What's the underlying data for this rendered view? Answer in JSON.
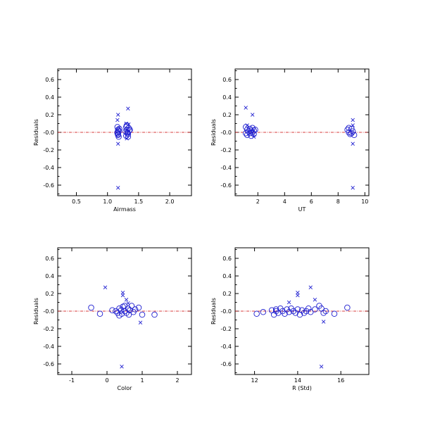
{
  "colors": {
    "points": "#1f1fd0",
    "zero_line": "#cc0000",
    "frame": "#000000"
  },
  "chart_data": [
    {
      "type": "scatter",
      "xlabel": "Airmass",
      "ylabel": "Residuals",
      "xlim": [
        0.2,
        2.35
      ],
      "ylim": [
        -0.72,
        0.72
      ],
      "xticks": [
        "0.5",
        "1.0",
        "1.5",
        "2.0"
      ],
      "yticks": [
        "0.6",
        "0.4",
        "0.2",
        "-0.0",
        "-0.2",
        "-0.4",
        "-0.6"
      ],
      "reference_line_y": 0,
      "series": [
        {
          "marker": "circle",
          "points": [
            [
              1.16,
              0.06
            ],
            [
              1.17,
              0.03
            ],
            [
              1.18,
              0.01
            ],
            [
              1.16,
              -0.01
            ],
            [
              1.17,
              -0.03
            ],
            [
              1.18,
              -0.05
            ],
            [
              1.16,
              0.0
            ],
            [
              1.19,
              0.04
            ],
            [
              1.17,
              -0.02
            ],
            [
              1.18,
              0.02
            ],
            [
              1.3,
              0.06
            ],
            [
              1.31,
              0.03
            ],
            [
              1.32,
              0.0
            ],
            [
              1.33,
              -0.02
            ],
            [
              1.3,
              -0.04
            ],
            [
              1.35,
              0.02
            ],
            [
              1.34,
              0.05
            ],
            [
              1.29,
              0.01
            ],
            [
              1.32,
              -0.01
            ],
            [
              1.36,
              0.03
            ],
            [
              1.31,
              0.08
            ],
            [
              1.33,
              -0.05
            ]
          ]
        },
        {
          "marker": "cross",
          "points": [
            [
              1.17,
              0.2
            ],
            [
              1.16,
              0.14
            ],
            [
              1.17,
              -0.13
            ],
            [
              1.17,
              -0.63
            ],
            [
              1.33,
              0.27
            ],
            [
              1.3,
              0.1
            ],
            [
              1.31,
              -0.07
            ],
            [
              1.34,
              0.09
            ]
          ]
        }
      ]
    },
    {
      "type": "scatter",
      "xlabel": "UT",
      "ylabel": "Residuals",
      "xlim": [
        0.3,
        10.3
      ],
      "ylim": [
        -0.72,
        0.72
      ],
      "xticks": [
        "2",
        "4",
        "6",
        "8",
        "10"
      ],
      "yticks": [
        "0.6",
        "0.4",
        "0.2",
        "-0.0",
        "-0.2",
        "-0.4",
        "-0.6"
      ],
      "reference_line_y": 0,
      "series": [
        {
          "marker": "circle",
          "points": [
            [
              1.1,
              0.06
            ],
            [
              1.2,
              0.03
            ],
            [
              1.3,
              0.01
            ],
            [
              1.1,
              -0.01
            ],
            [
              1.2,
              -0.03
            ],
            [
              1.4,
              0.04
            ],
            [
              1.5,
              0.02
            ],
            [
              1.6,
              0.0
            ],
            [
              1.7,
              -0.02
            ],
            [
              1.5,
              -0.04
            ],
            [
              1.6,
              0.05
            ],
            [
              1.7,
              0.02
            ],
            [
              1.4,
              -0.01
            ],
            [
              1.8,
              0.03
            ],
            [
              8.7,
              0.03
            ],
            [
              8.8,
              0.0
            ],
            [
              8.9,
              -0.02
            ],
            [
              9.0,
              0.04
            ],
            [
              9.1,
              0.01
            ],
            [
              9.2,
              -0.03
            ],
            [
              8.8,
              0.05
            ],
            [
              9.0,
              -0.01
            ]
          ]
        },
        {
          "marker": "cross",
          "points": [
            [
              1.1,
              0.28
            ],
            [
              1.6,
              0.2
            ],
            [
              1.2,
              0.08
            ],
            [
              1.7,
              -0.05
            ],
            [
              9.1,
              0.14
            ],
            [
              9.1,
              0.08
            ],
            [
              9.1,
              -0.13
            ],
            [
              9.1,
              -0.63
            ]
          ]
        }
      ]
    },
    {
      "type": "scatter",
      "xlabel": "Color",
      "ylabel": "Residuals",
      "xlim": [
        -1.4,
        2.4
      ],
      "ylim": [
        -0.72,
        0.72
      ],
      "xticks": [
        "-1",
        "0",
        "1",
        "2"
      ],
      "yticks": [
        "0.6",
        "0.4",
        "0.2",
        "-0.0",
        "-0.2",
        "-0.4",
        "-0.6"
      ],
      "reference_line_y": 0,
      "series": [
        {
          "marker": "circle",
          "points": [
            [
              -0.45,
              0.04
            ],
            [
              -0.2,
              -0.03
            ],
            [
              0.15,
              0.01
            ],
            [
              0.25,
              0.0
            ],
            [
              0.3,
              -0.02
            ],
            [
              0.35,
              0.03
            ],
            [
              0.4,
              0.01
            ],
            [
              0.42,
              -0.03
            ],
            [
              0.45,
              0.05
            ],
            [
              0.5,
              0.0
            ],
            [
              0.55,
              -0.02
            ],
            [
              0.6,
              0.03
            ],
            [
              0.62,
              -0.04
            ],
            [
              0.65,
              0.01
            ],
            [
              0.7,
              0.06
            ],
            [
              0.75,
              -0.01
            ],
            [
              0.8,
              0.02
            ],
            [
              0.9,
              0.04
            ],
            [
              1.0,
              -0.04
            ],
            [
              1.35,
              -0.04
            ],
            [
              0.5,
              0.06
            ],
            [
              0.35,
              -0.05
            ]
          ]
        },
        {
          "marker": "cross",
          "points": [
            [
              -0.05,
              0.27
            ],
            [
              0.45,
              0.21
            ],
            [
              0.45,
              0.18
            ],
            [
              0.55,
              0.13
            ],
            [
              0.6,
              0.09
            ],
            [
              0.95,
              -0.13
            ],
            [
              0.42,
              -0.63
            ]
          ]
        }
      ]
    },
    {
      "type": "scatter",
      "xlabel": "R (Std)",
      "ylabel": "Residuals",
      "xlim": [
        11.1,
        17.3
      ],
      "ylim": [
        -0.72,
        0.72
      ],
      "xticks": [
        "12",
        "14",
        "16"
      ],
      "yticks": [
        "0.6",
        "0.4",
        "0.2",
        "-0.0",
        "-0.2",
        "-0.4",
        "-0.6"
      ],
      "reference_line_y": 0,
      "series": [
        {
          "marker": "circle",
          "points": [
            [
              12.1,
              -0.03
            ],
            [
              12.4,
              -0.01
            ],
            [
              12.8,
              0.01
            ],
            [
              12.9,
              -0.04
            ],
            [
              13.0,
              0.02
            ],
            [
              13.1,
              -0.02
            ],
            [
              13.2,
              0.03
            ],
            [
              13.3,
              0.0
            ],
            [
              13.4,
              -0.03
            ],
            [
              13.5,
              0.02
            ],
            [
              13.6,
              -0.01
            ],
            [
              13.7,
              0.03
            ],
            [
              13.8,
              0.0
            ],
            [
              13.9,
              -0.02
            ],
            [
              14.0,
              0.02
            ],
            [
              14.1,
              -0.04
            ],
            [
              14.2,
              0.01
            ],
            [
              14.3,
              -0.02
            ],
            [
              14.5,
              0.03
            ],
            [
              14.6,
              -0.01
            ],
            [
              14.8,
              0.02
            ],
            [
              15.0,
              0.06
            ],
            [
              15.1,
              0.03
            ],
            [
              15.2,
              -0.02
            ],
            [
              15.3,
              0.0
            ],
            [
              15.7,
              -0.03
            ],
            [
              16.3,
              0.04
            ],
            [
              13.0,
              0.0
            ],
            [
              14.4,
              0.0
            ]
          ]
        },
        {
          "marker": "cross",
          "points": [
            [
              13.6,
              0.1
            ],
            [
              14.0,
              0.21
            ],
            [
              14.0,
              0.18
            ],
            [
              14.6,
              0.27
            ],
            [
              14.8,
              0.13
            ],
            [
              15.2,
              -0.12
            ],
            [
              15.1,
              -0.63
            ]
          ]
        }
      ]
    }
  ]
}
